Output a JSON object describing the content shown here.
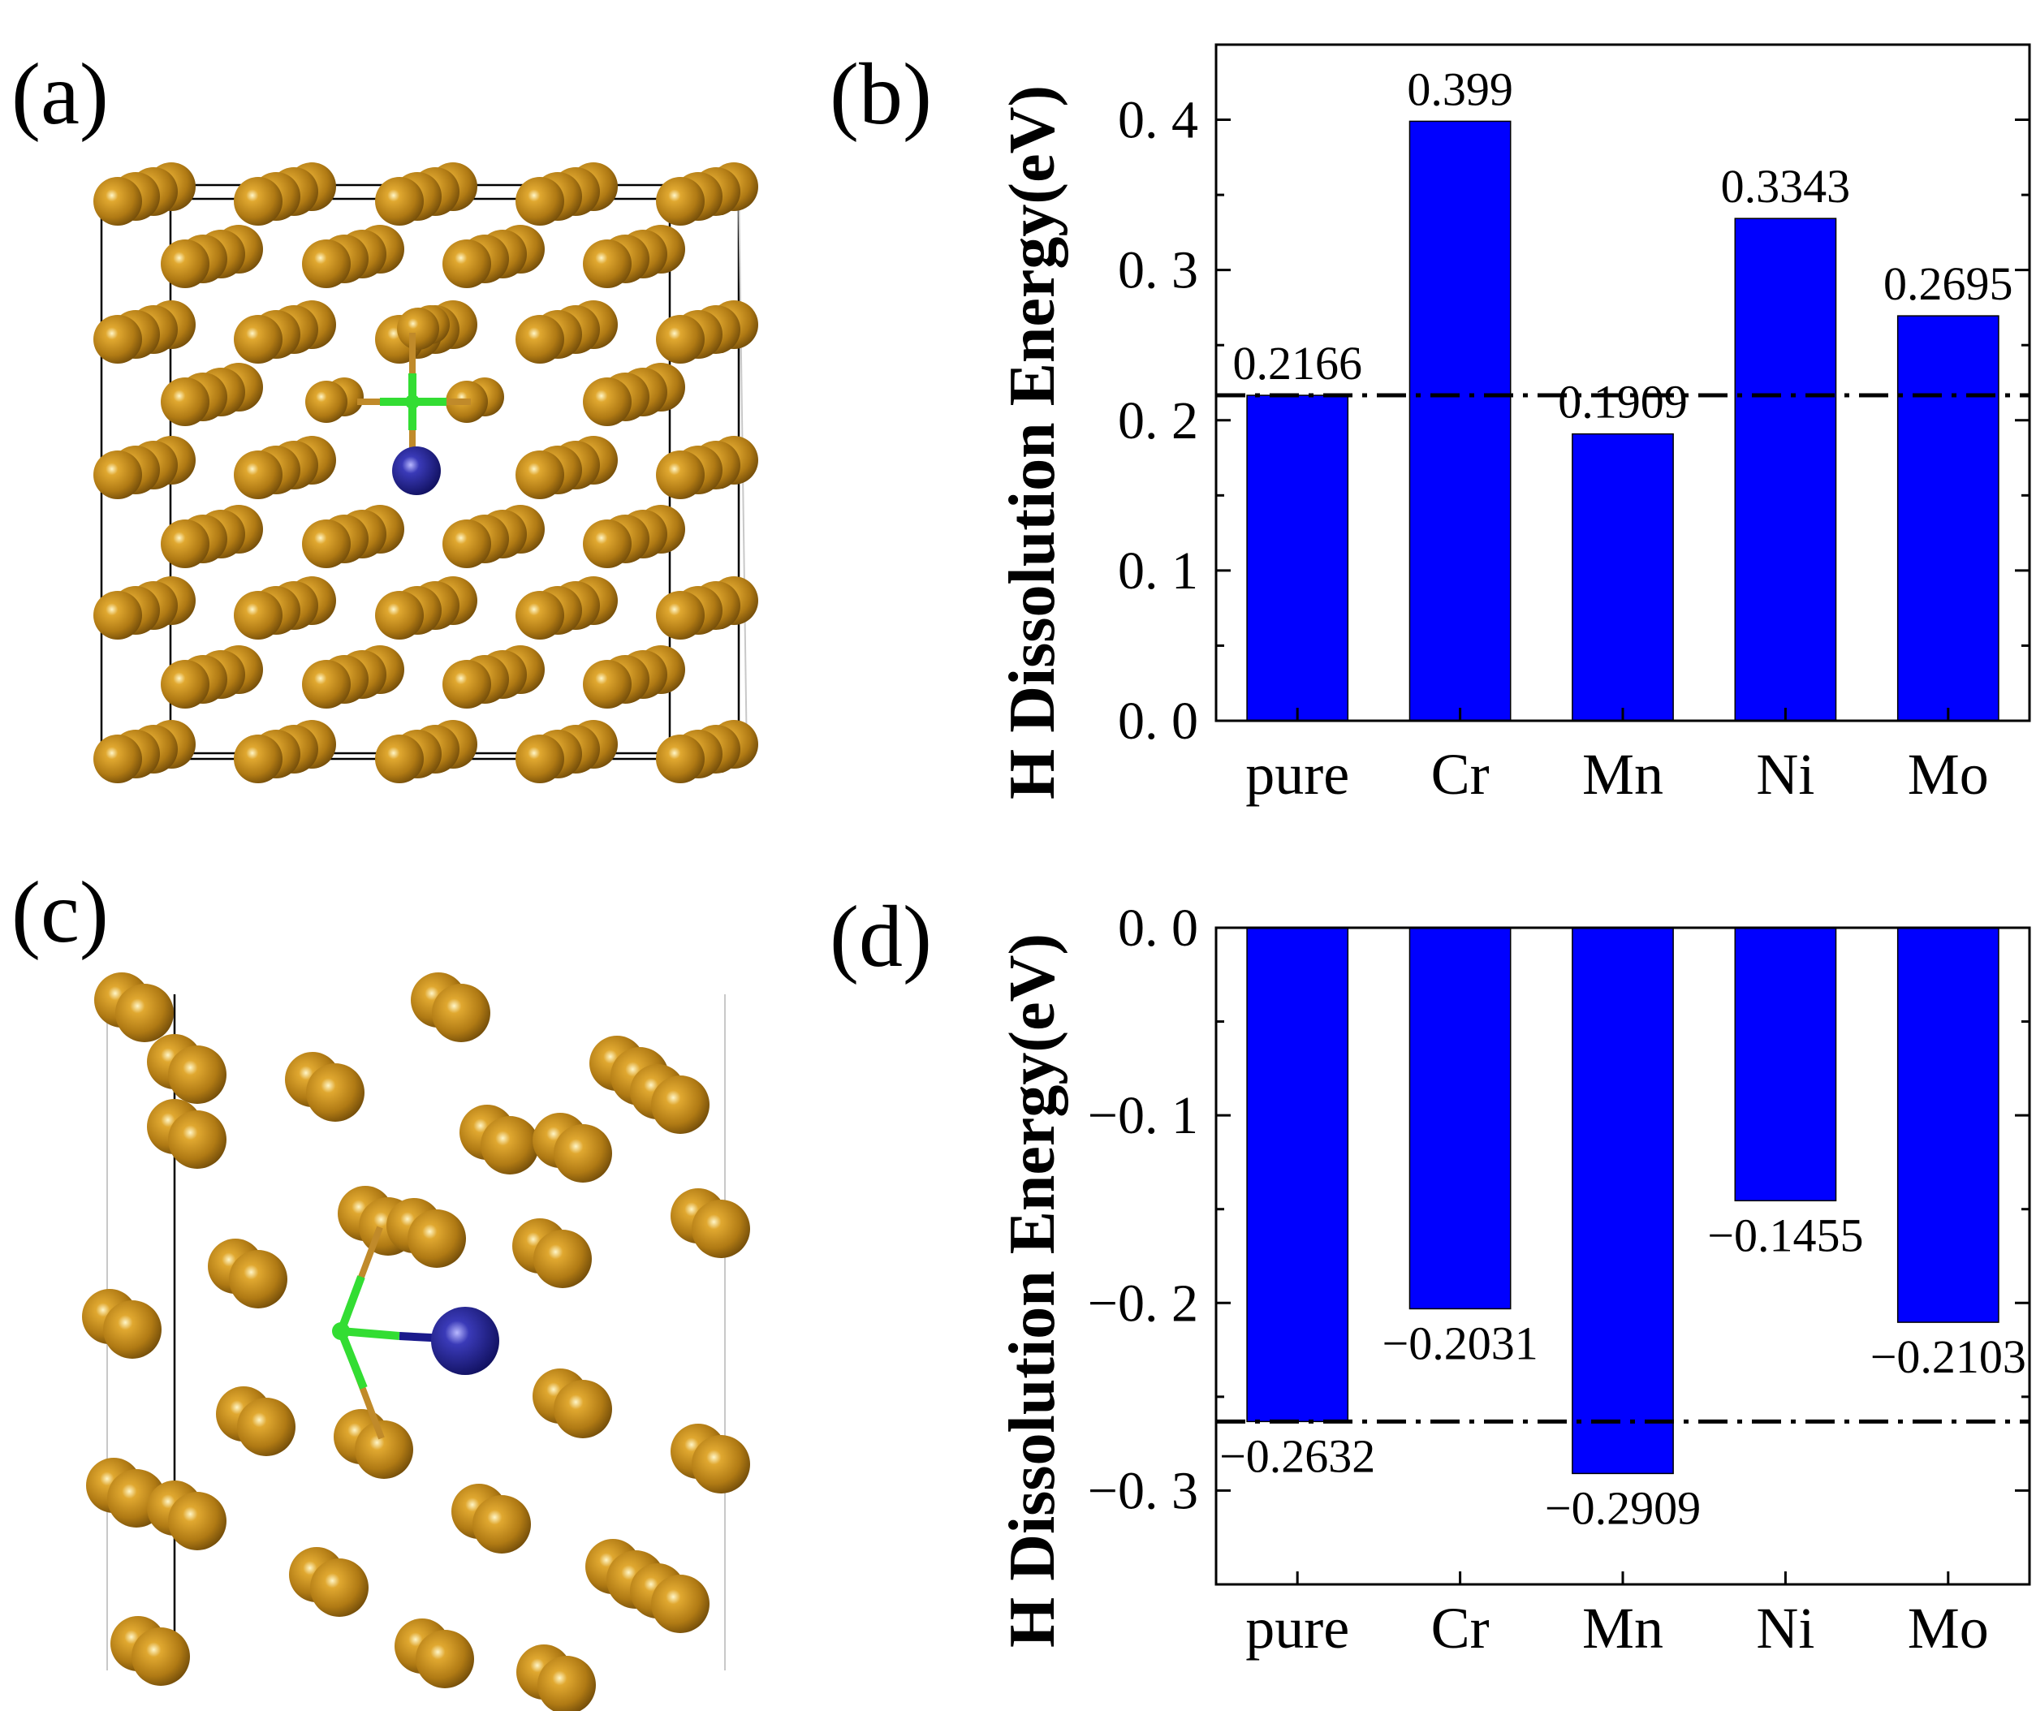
{
  "figure": {
    "panel_labels": [
      "(a)",
      "(b)",
      "(c)",
      "(d)"
    ],
    "colors": {
      "bar": "#0000ff",
      "atom_fe": "#b8860b",
      "atom_h": "#1a1a8c",
      "bond_green": "#33dd33",
      "bond_gold": "#c08a2a"
    }
  },
  "chart_data": [
    {
      "panel": "(b)",
      "type": "bar",
      "categories": [
        "pure",
        "Cr",
        "Mn",
        "Ni",
        "Mo"
      ],
      "values": [
        0.2166,
        0.399,
        0.1909,
        0.3343,
        0.2695
      ],
      "value_labels": [
        "0.2166",
        "0.399",
        "0.1909",
        "0.3343",
        "0.2695"
      ],
      "ylabel": "H Dissolution Energy(eV)",
      "xlabel": "",
      "ylim": [
        0.0,
        0.45
      ],
      "yticks": [
        0.0,
        0.1,
        0.2,
        0.3,
        0.4
      ],
      "ytick_labels": [
        "0. 0",
        "0. 1",
        "0. 2",
        "0. 3",
        "0. 4"
      ],
      "reference_line": 0.2166,
      "label_position": "above"
    },
    {
      "panel": "(d)",
      "type": "bar",
      "categories": [
        "pure",
        "Cr",
        "Mn",
        "Ni",
        "Mo"
      ],
      "values": [
        -0.2632,
        -0.2031,
        -0.2909,
        -0.1455,
        -0.2103
      ],
      "value_labels": [
        "−0.2632",
        "−0.2031",
        "−0.2909",
        "−0.1455",
        "−0.2103"
      ],
      "ylabel": "H Dissolution Energy(eV)",
      "xlabel": "",
      "ylim": [
        -0.35,
        0.0
      ],
      "yticks": [
        0.0,
        -0.1,
        -0.2,
        -0.3
      ],
      "ytick_labels": [
        "0. 0",
        "−0. 1",
        "−0. 2",
        "−0. 3"
      ],
      "reference_line": -0.2632,
      "label_position": "below"
    }
  ]
}
